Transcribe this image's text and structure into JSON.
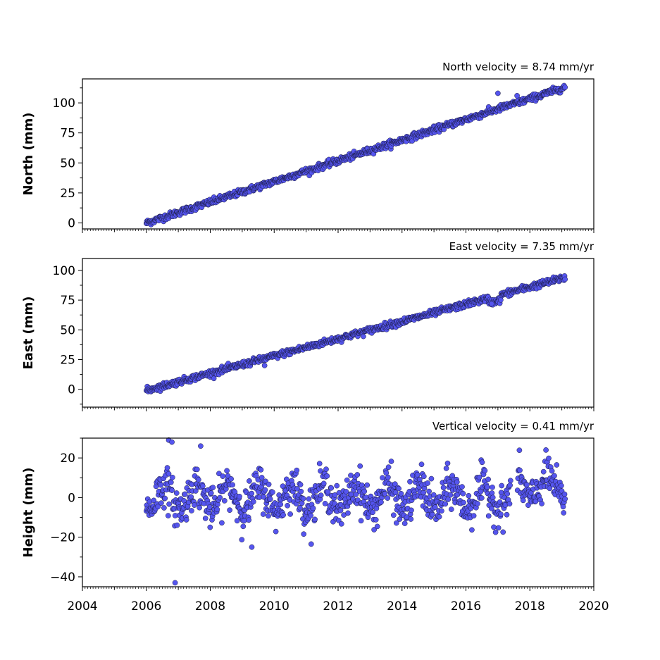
{
  "chart_data": [
    {
      "type": "scatter",
      "title": "North velocity = 8.74 mm/yr",
      "xlabel": "",
      "ylabel": "North (mm)",
      "xlim": [
        2004,
        2020
      ],
      "ylim": [
        -5,
        120
      ],
      "yticks": [
        0,
        25,
        50,
        75,
        100
      ],
      "grid": false,
      "marker_color": "#5555ee",
      "trend": {
        "x_start": 2006.0,
        "x_end": 2019.1,
        "y_start": 0,
        "y_end": 113,
        "slope_mm_per_yr": 8.74
      },
      "features": [
        {
          "x": 2017.0,
          "y": 108
        },
        {
          "x": 2017.6,
          "y": 106
        }
      ]
    },
    {
      "type": "scatter",
      "title": "East velocity = 7.35 mm/yr",
      "xlabel": "",
      "ylabel": "East (mm)",
      "xlim": [
        2004,
        2020
      ],
      "ylim": [
        -15,
        110
      ],
      "yticks": [
        0,
        25,
        50,
        75,
        100
      ],
      "grid": false,
      "marker_color": "#5555ee",
      "trend": {
        "x_start": 2006.0,
        "x_end": 2019.1,
        "y_start": -1,
        "y_end": 94,
        "slope_mm_per_yr": 7.35
      },
      "features": [
        {
          "x": 2016.8,
          "y": 72
        },
        {
          "x": 2009.7,
          "y": 20
        }
      ]
    },
    {
      "type": "scatter",
      "title": "Vertical velocity = 0.41 mm/yr",
      "xlabel": "",
      "ylabel": "Height (mm)",
      "xlim": [
        2004,
        2020
      ],
      "ylim": [
        -45,
        30
      ],
      "yticks": [
        -40,
        -20,
        0,
        20
      ],
      "xticks": [
        2004,
        2006,
        2008,
        2010,
        2012,
        2014,
        2016,
        2018,
        2020
      ],
      "grid": false,
      "marker_color": "#5555ee",
      "data_range_x": [
        2006.0,
        2019.1
      ],
      "gap": [
        2017.4,
        2017.6
      ],
      "outliers": [
        {
          "x": 2006.7,
          "y": 29
        },
        {
          "x": 2006.8,
          "y": 28
        },
        {
          "x": 2007.7,
          "y": 26
        },
        {
          "x": 2006.9,
          "y": -43
        },
        {
          "x": 2009.3,
          "y": -25
        }
      ]
    }
  ]
}
